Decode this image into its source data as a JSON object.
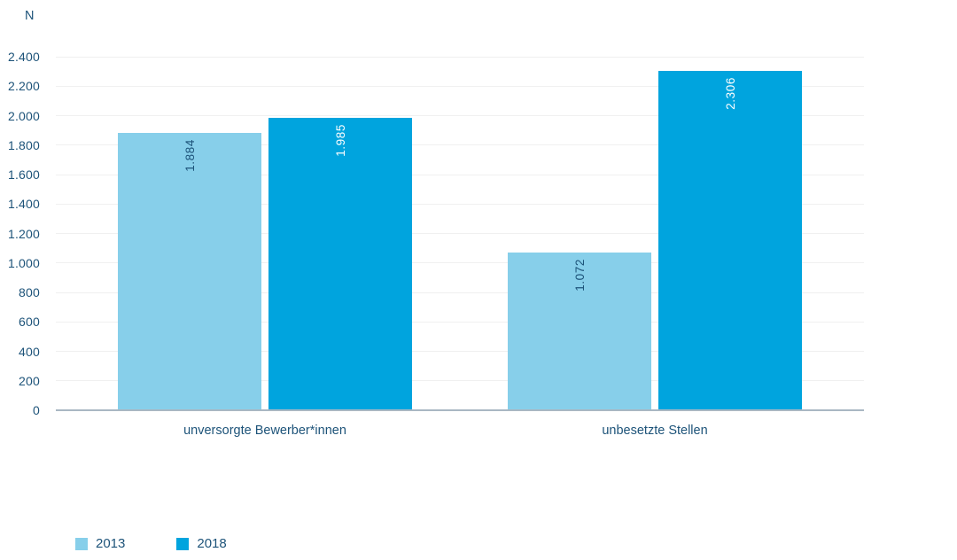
{
  "chart_data": {
    "type": "bar",
    "title": "",
    "ylabel": "N",
    "xlabel": "",
    "categories": [
      "unversorgte Bewerber*innen",
      "unbesetzte Stellen"
    ],
    "series": [
      {
        "name": "2013",
        "values": [
          1884,
          1072
        ],
        "value_labels": [
          "1.884",
          "1.072"
        ],
        "color": "#87CFEA",
        "label_color": "#1D5379"
      },
      {
        "name": "2018",
        "values": [
          1985,
          2306
        ],
        "value_labels": [
          "1.985",
          "2.306"
        ],
        "color": "#00A4DE",
        "label_color": "#FFFFFF"
      }
    ],
    "ylim": [
      0,
      2400
    ],
    "ytick_step": 200,
    "ytick_labels": [
      "0",
      "200",
      "400",
      "600",
      "800",
      "1.000",
      "1.200",
      "1.400",
      "1.600",
      "1.800",
      "2.000",
      "2.200",
      "2.400"
    ],
    "grid": true,
    "legend_position": "bottom-left"
  },
  "legend": {
    "items": [
      {
        "label": "2013",
        "color": "#87CFEA"
      },
      {
        "label": "2018",
        "color": "#00A4DE"
      }
    ]
  },
  "colors": {
    "series_2013": "#87CFEA",
    "series_2018": "#00A4DE",
    "axis_text": "#1D5379",
    "gridline": "#F0F0F0",
    "baseline": "#A9B7C3",
    "background": "#FFFFFF"
  }
}
